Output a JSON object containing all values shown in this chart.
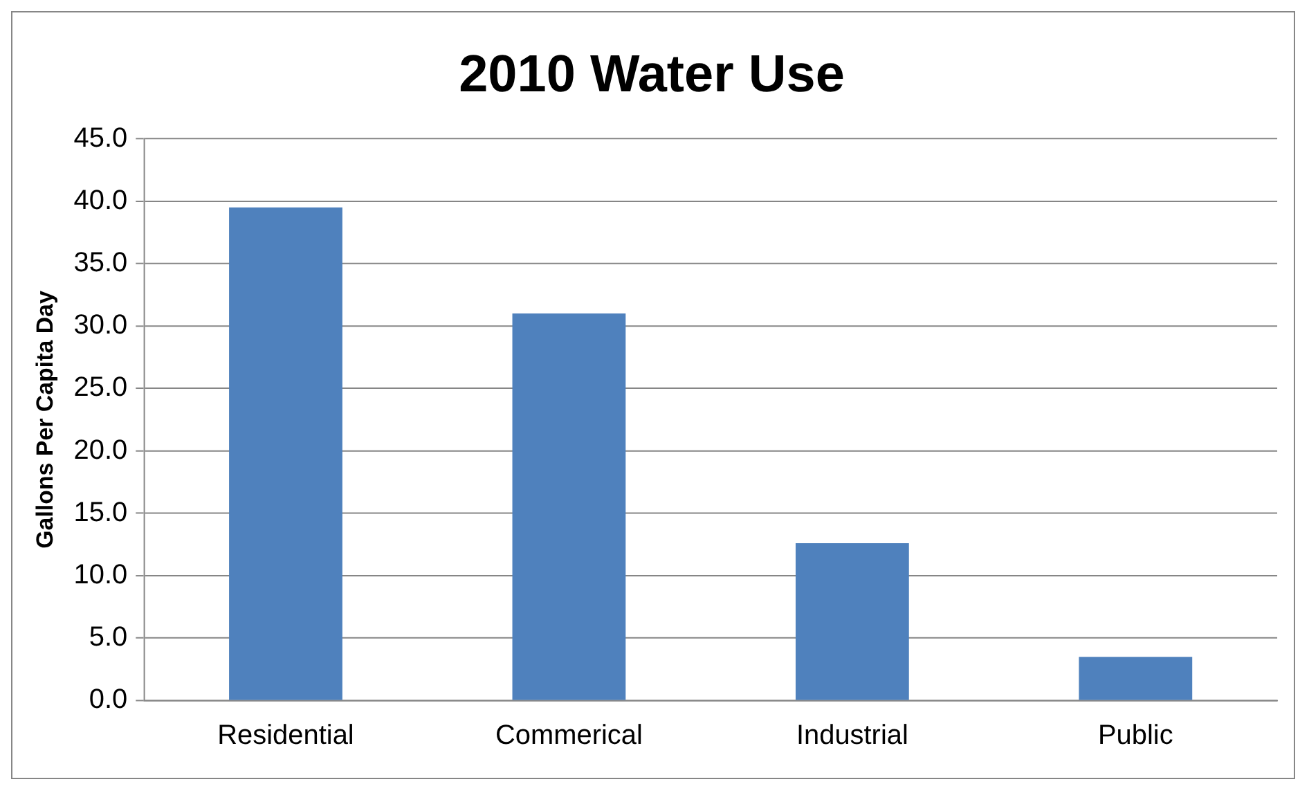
{
  "chart_data": {
    "type": "bar",
    "title": "2010 Water Use",
    "ylabel": "Gallons Per Capita Day",
    "categories": [
      "Residential",
      "Commerical",
      "Industrial",
      "Public"
    ],
    "values": [
      39.5,
      31.0,
      12.6,
      3.5
    ],
    "color": "#4f81bd",
    "ylim": [
      0,
      45
    ],
    "yticks": [
      {
        "value": 0,
        "label": "0.0"
      },
      {
        "value": 5,
        "label": "5.0"
      },
      {
        "value": 10,
        "label": "10.0"
      },
      {
        "value": 15,
        "label": "15.0"
      },
      {
        "value": 20,
        "label": "20.0"
      },
      {
        "value": 25,
        "label": "25.0"
      },
      {
        "value": 30,
        "label": "30.0"
      },
      {
        "value": 35,
        "label": "35.0"
      },
      {
        "value": 40,
        "label": "40.0"
      },
      {
        "value": 45,
        "label": "45.0"
      }
    ],
    "grid": "y",
    "legend": false
  }
}
